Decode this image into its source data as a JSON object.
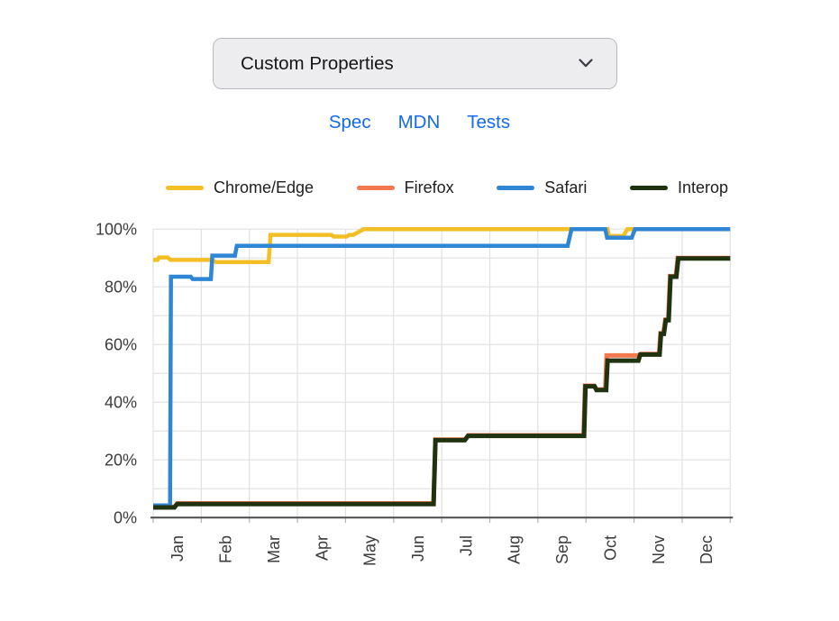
{
  "feature_select": {
    "value": "Custom Properties"
  },
  "links": {
    "spec": "Spec",
    "mdn": "MDN",
    "tests": "Tests"
  },
  "accent": {
    "link_blue": "#1569f0"
  },
  "chart_data": {
    "type": "line",
    "title": "",
    "legend_position": "top",
    "grid": true,
    "x_axis": {
      "unit": "month",
      "range": [
        0,
        12
      ],
      "labels": [
        "Jan",
        "Feb",
        "Mar",
        "Apr",
        "May",
        "Jun",
        "Jul",
        "Aug",
        "Sep",
        "Oct",
        "Nov",
        "Dec"
      ],
      "label_rotation_deg": -90,
      "gridline_step": 1
    },
    "y_axis": {
      "unit": "percent",
      "range": [
        0,
        100
      ],
      "gridline_step": 10,
      "label_step": 20,
      "labels": [
        "0%",
        "20%",
        "40%",
        "60%",
        "80%",
        "100%"
      ]
    },
    "series": [
      {
        "name": "Chrome/Edge",
        "color": "#f3bf25",
        "stroke_width": 4.5,
        "points": [
          [
            0,
            89.3
          ],
          [
            0.09,
            89.3
          ],
          [
            0.12,
            90.2
          ],
          [
            0.3,
            90.2
          ],
          [
            0.36,
            89.3
          ],
          [
            1.22,
            89.3
          ],
          [
            1.3,
            88.6
          ],
          [
            2.4,
            88.6
          ],
          [
            2.44,
            98.0
          ],
          [
            3.7,
            98.0
          ],
          [
            3.76,
            97.4
          ],
          [
            4.02,
            97.4
          ],
          [
            4.08,
            98.0
          ],
          [
            4.16,
            98.0
          ],
          [
            4.38,
            100
          ],
          [
            9.45,
            100
          ],
          [
            9.48,
            97.6
          ],
          [
            9.78,
            97.6
          ],
          [
            9.86,
            100
          ],
          [
            12,
            100
          ]
        ]
      },
      {
        "name": "Firefox",
        "color": "#f2794e",
        "stroke_width": 5,
        "points": [
          [
            0,
            3.7
          ],
          [
            0.44,
            3.7
          ],
          [
            0.5,
            4.9
          ],
          [
            5.83,
            4.9
          ],
          [
            5.87,
            27.0
          ],
          [
            6.48,
            27.0
          ],
          [
            6.55,
            28.5
          ],
          [
            8.95,
            28.5
          ],
          [
            8.98,
            45.7
          ],
          [
            9.17,
            45.7
          ],
          [
            9.21,
            44.4
          ],
          [
            9.4,
            44.4
          ],
          [
            9.43,
            56.2
          ],
          [
            10.1,
            56.2
          ],
          [
            10.14,
            56.7
          ],
          [
            10.52,
            56.7
          ],
          [
            10.55,
            63.9
          ],
          [
            10.61,
            63.9
          ],
          [
            10.65,
            68.6
          ],
          [
            10.71,
            68.6
          ],
          [
            10.75,
            83.7
          ],
          [
            10.87,
            83.7
          ],
          [
            10.91,
            90.0
          ],
          [
            12,
            90.0
          ]
        ]
      },
      {
        "name": "Safari",
        "color": "#2e86d4",
        "stroke_width": 4.5,
        "points": [
          [
            0,
            4.2
          ],
          [
            0.35,
            4.2
          ],
          [
            0.37,
            83.5
          ],
          [
            0.78,
            83.5
          ],
          [
            0.82,
            82.7
          ],
          [
            1.2,
            82.7
          ],
          [
            1.23,
            90.8
          ],
          [
            1.7,
            90.8
          ],
          [
            1.74,
            94.2
          ],
          [
            8.62,
            94.2
          ],
          [
            8.7,
            100
          ],
          [
            9.4,
            100
          ],
          [
            9.44,
            97.0
          ],
          [
            9.95,
            97.0
          ],
          [
            10.02,
            100
          ],
          [
            12,
            100
          ]
        ]
      },
      {
        "name": "Interop",
        "color": "#203310",
        "stroke_width": 5,
        "points": [
          [
            0,
            3.5
          ],
          [
            0.44,
            3.5
          ],
          [
            0.5,
            4.7
          ],
          [
            5.83,
            4.7
          ],
          [
            5.87,
            26.8
          ],
          [
            6.48,
            26.8
          ],
          [
            6.55,
            28.3
          ],
          [
            8.96,
            28.3
          ],
          [
            8.99,
            45.5
          ],
          [
            9.18,
            45.5
          ],
          [
            9.22,
            44.2
          ],
          [
            9.42,
            44.2
          ],
          [
            9.45,
            54.4
          ],
          [
            10.09,
            54.4
          ],
          [
            10.13,
            56.5
          ],
          [
            10.53,
            56.5
          ],
          [
            10.56,
            63.7
          ],
          [
            10.62,
            63.7
          ],
          [
            10.66,
            68.4
          ],
          [
            10.72,
            68.4
          ],
          [
            10.76,
            83.5
          ],
          [
            10.88,
            83.5
          ],
          [
            10.92,
            89.8
          ],
          [
            12,
            89.8
          ]
        ]
      }
    ]
  }
}
